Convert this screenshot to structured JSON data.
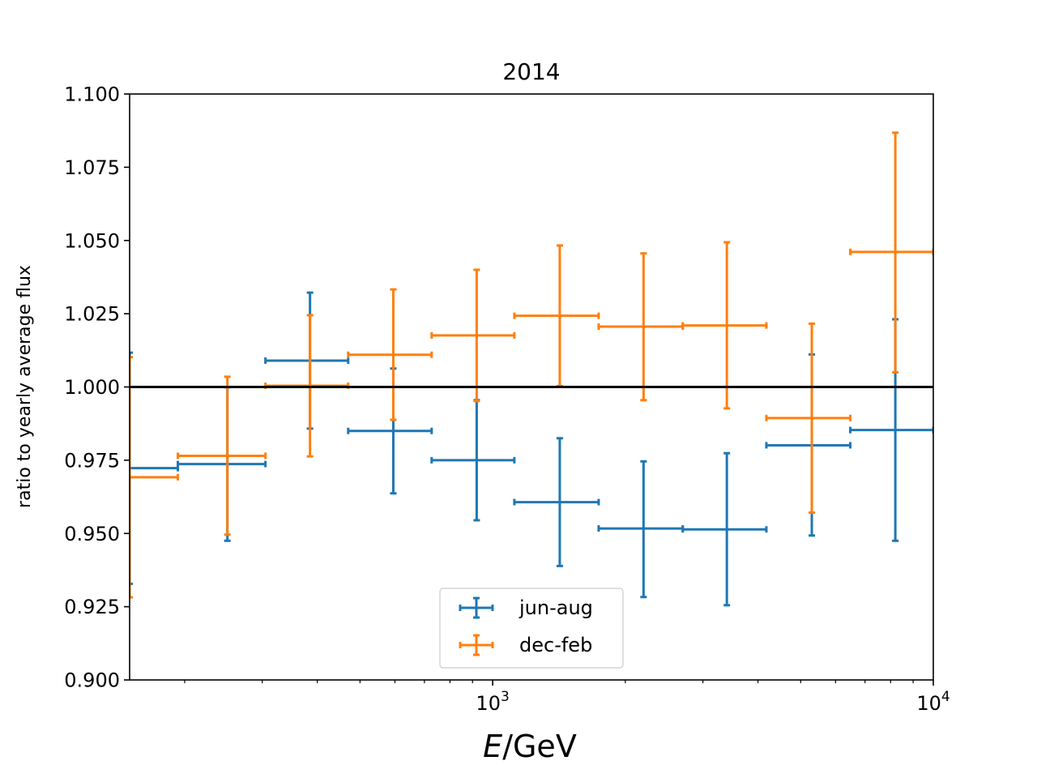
{
  "chart_data": {
    "type": "errorbar",
    "title": "2014",
    "ylabel": "ratio to yearly average flux",
    "xlabel": {
      "italic": "E",
      "rest": "/GeV"
    },
    "x_scale": "log",
    "xlim": [
      150,
      10000
    ],
    "ylim": [
      0.9,
      1.1
    ],
    "yticks": [
      0.9,
      0.925,
      0.95,
      0.975,
      1.0,
      1.025,
      1.05,
      1.075,
      1.1
    ],
    "ytick_labels": [
      "0.900",
      "0.925",
      "0.950",
      "0.975",
      "1.000",
      "1.025",
      "1.050",
      "1.075",
      "1.100"
    ],
    "xtick_labels": [
      {
        "value": 1000,
        "base": "10",
        "exp": "3"
      },
      {
        "value": 10000,
        "base": "10",
        "exp": "4"
      }
    ],
    "reference_line": 1.0,
    "legend_position": "lower-center",
    "series": [
      {
        "name": "jun-aug",
        "color": "#1f77b4",
        "points": [
          {
            "x": 150,
            "xlo": 150,
            "xhi": 193,
            "y": 0.9723,
            "ylo": 0.9328,
            "yhi": 1.0117
          },
          {
            "x": 250,
            "xlo": 193,
            "xhi": 305,
            "y": 0.9737,
            "ylo": 0.9475,
            "yhi": 0.9999
          },
          {
            "x": 385,
            "xlo": 305,
            "xhi": 470,
            "y": 1.009,
            "ylo": 0.9858,
            "yhi": 1.0322
          },
          {
            "x": 595,
            "xlo": 470,
            "xhi": 727,
            "y": 0.985,
            "ylo": 0.9637,
            "yhi": 1.0063
          },
          {
            "x": 920,
            "xlo": 727,
            "xhi": 1120,
            "y": 0.975,
            "ylo": 0.9545,
            "yhi": 0.9955
          },
          {
            "x": 1420,
            "xlo": 1120,
            "xhi": 1740,
            "y": 0.9607,
            "ylo": 0.9389,
            "yhi": 0.9825
          },
          {
            "x": 2200,
            "xlo": 1740,
            "xhi": 2700,
            "y": 0.9517,
            "ylo": 0.9283,
            "yhi": 0.9746
          },
          {
            "x": 3400,
            "xlo": 2700,
            "xhi": 4180,
            "y": 0.9514,
            "ylo": 0.9255,
            "yhi": 0.9774
          },
          {
            "x": 5300,
            "xlo": 4180,
            "xhi": 6480,
            "y": 0.9801,
            "ylo": 0.9493,
            "yhi": 1.0111
          },
          {
            "x": 8200,
            "xlo": 6480,
            "xhi": 10000,
            "y": 0.9853,
            "ylo": 0.9475,
            "yhi": 1.0231
          }
        ]
      },
      {
        "name": "dec-feb",
        "color": "#ff7f0e",
        "points": [
          {
            "x": 150,
            "xlo": 150,
            "xhi": 193,
            "y": 0.9692,
            "ylo": 0.9282,
            "yhi": 1.0102
          },
          {
            "x": 250,
            "xlo": 193,
            "xhi": 305,
            "y": 0.9765,
            "ylo": 0.9496,
            "yhi": 1.0035
          },
          {
            "x": 385,
            "xlo": 305,
            "xhi": 470,
            "y": 1.0004,
            "ylo": 0.9763,
            "yhi": 1.0245
          },
          {
            "x": 595,
            "xlo": 470,
            "xhi": 727,
            "y": 1.011,
            "ylo": 0.9888,
            "yhi": 1.0333
          },
          {
            "x": 920,
            "xlo": 727,
            "xhi": 1120,
            "y": 1.0176,
            "ylo": 0.9952,
            "yhi": 1.04
          },
          {
            "x": 1420,
            "xlo": 1120,
            "xhi": 1740,
            "y": 1.0243,
            "ylo": 1.0003,
            "yhi": 1.0483
          },
          {
            "x": 2200,
            "xlo": 1740,
            "xhi": 2700,
            "y": 1.0206,
            "ylo": 0.9955,
            "yhi": 1.0456
          },
          {
            "x": 3400,
            "xlo": 2700,
            "xhi": 4180,
            "y": 1.021,
            "ylo": 0.9927,
            "yhi": 1.0494
          },
          {
            "x": 5300,
            "xlo": 4180,
            "xhi": 6480,
            "y": 0.9894,
            "ylo": 0.9571,
            "yhi": 1.0216
          },
          {
            "x": 8200,
            "xlo": 6480,
            "xhi": 10000,
            "y": 1.0461,
            "ylo": 1.005,
            "yhi": 1.0868
          }
        ]
      }
    ]
  }
}
